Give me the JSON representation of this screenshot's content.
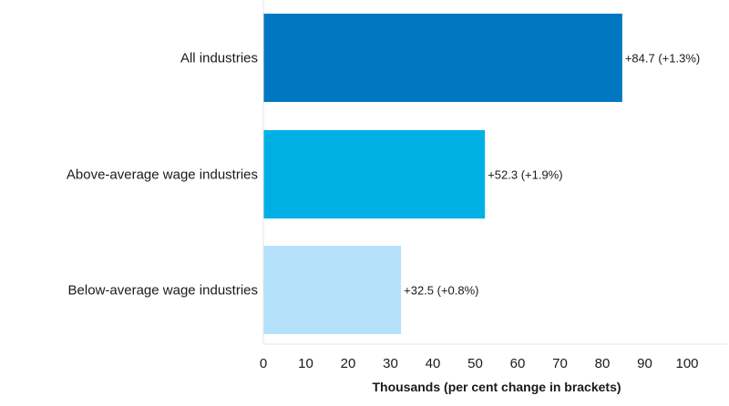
{
  "chart_data": {
    "type": "bar",
    "orientation": "horizontal",
    "categories": [
      "All industries",
      "Above-average wage industries",
      "Below-average wage industries"
    ],
    "values": [
      84.7,
      52.3,
      32.5
    ],
    "data_labels": [
      "+84.7 (+1.3%)",
      "+52.3 (+1.9%)",
      "+32.5 (+0.8%)"
    ],
    "percent_change": [
      1.3,
      1.9,
      0.8
    ],
    "colors": [
      "#0077c0",
      "#00b0e5",
      "#b5e1fa"
    ],
    "xlabel": "Thousands (per cent change in brackets)",
    "xlim": [
      0,
      100
    ],
    "xticks": [
      0,
      10,
      20,
      30,
      40,
      50,
      60,
      70,
      80,
      90,
      100
    ],
    "grid": false,
    "legend": "none"
  }
}
